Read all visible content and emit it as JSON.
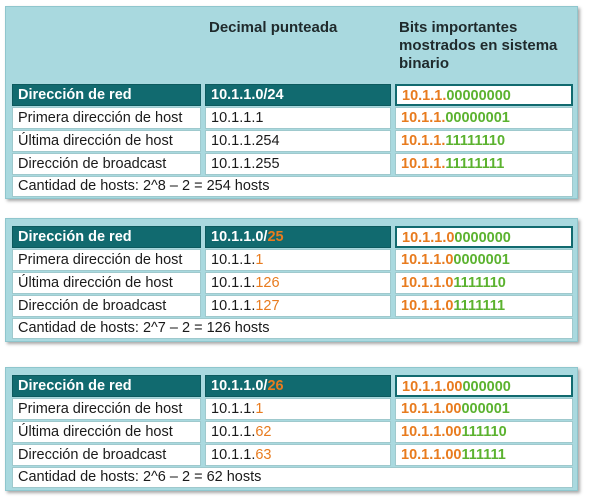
{
  "header": {
    "col2": "Decimal punteada",
    "col3": [
      "Bits importantes",
      "mostrados en sistema",
      "binario"
    ]
  },
  "colors": {
    "orange": "#e87b1e",
    "green": "#5bb22f",
    "teal": "#116a6f",
    "panel": "#a9d9df"
  },
  "blocks": [
    {
      "rows": [
        {
          "label": "Dirección de red",
          "dec_a": "10.1.1.0/24",
          "dec_b": "",
          "bin_o": "10.1.1.",
          "bin_g": "00000000"
        },
        {
          "label": "Primera dirección de host",
          "dec_a": "10.1.1.1",
          "dec_b": "",
          "bin_o": "10.1.1.",
          "bin_g": "00000001"
        },
        {
          "label": "Última dirección de host",
          "dec_a": "10.1.1.254",
          "dec_b": "",
          "bin_o": "10.1.1.",
          "bin_g": "11111110"
        },
        {
          "label": "Dirección de broadcast",
          "dec_a": "10.1.1.255",
          "dec_b": "",
          "bin_o": "10.1.1.",
          "bin_g": "11111111"
        }
      ],
      "footer": "Cantidad de hosts: 2^8 – 2 = 254 hosts"
    },
    {
      "rows": [
        {
          "label": "Dirección de red",
          "dec_a": "10.1.1.0/",
          "dec_b": "25",
          "bin_o": "10.1.1.0",
          "bin_g": "0000000"
        },
        {
          "label": "Primera dirección de host",
          "dec_a": "10.1.1.",
          "dec_b": "1",
          "bin_o": "10.1.1.0",
          "bin_g": "0000001"
        },
        {
          "label": "Última dirección de host",
          "dec_a": "10.1.1.",
          "dec_b": "126",
          "bin_o": "10.1.1.0",
          "bin_g": "1111110"
        },
        {
          "label": "Dirección de broadcast",
          "dec_a": "10.1.1.",
          "dec_b": "127",
          "bin_o": "10.1.1.0",
          "bin_g": "1111111"
        }
      ],
      "footer": "Cantidad de hosts: 2^7 – 2 = 126 hosts"
    },
    {
      "rows": [
        {
          "label": "Dirección de red",
          "dec_a": "10.1.1.0/",
          "dec_b": "26",
          "bin_o": "10.1.1.00",
          "bin_g": "000000"
        },
        {
          "label": "Primera dirección de host",
          "dec_a": "10.1.1.",
          "dec_b": "1",
          "bin_o": "10.1.1.00",
          "bin_g": "000001"
        },
        {
          "label": "Última dirección de host",
          "dec_a": "10.1.1.",
          "dec_b": "62",
          "bin_o": "10.1.1.00",
          "bin_g": "111110"
        },
        {
          "label": "Dirección de broadcast",
          "dec_a": "10.1.1.",
          "dec_b": "63",
          "bin_o": "10.1.1.00",
          "bin_g": "111111"
        }
      ],
      "footer": "Cantidad de hosts: 2^6 – 2 = 62 hosts"
    }
  ]
}
